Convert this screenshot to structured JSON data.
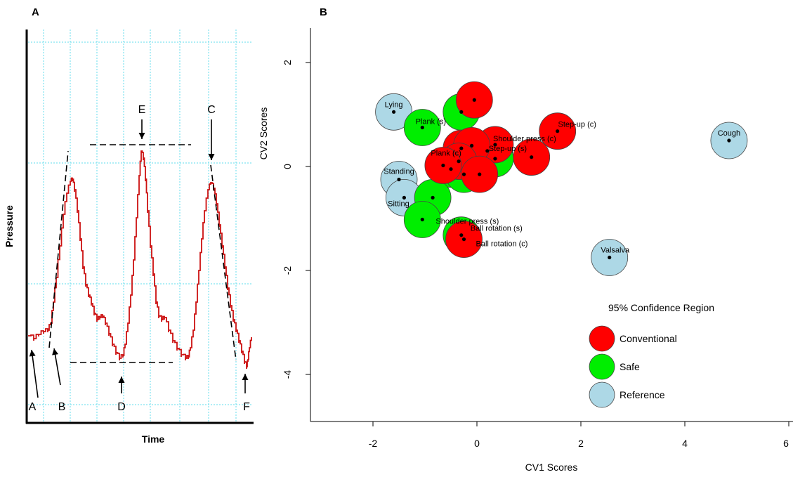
{
  "chart_data": [
    {
      "panel": "A",
      "type": "line",
      "xlabel": "Time",
      "ylabel": "Pressure",
      "grid": true,
      "series_color": "#cc1111",
      "grid_color": "#7fe3f0",
      "annotations": [
        "A",
        "B",
        "C",
        "D",
        "E",
        "F"
      ]
    },
    {
      "panel": "B",
      "type": "scatter",
      "xlabel": "CV1 Scores",
      "ylabel": "CV2 Scores",
      "xlim": [
        -3.4,
        6
      ],
      "ylim": [
        -5,
        2.7
      ],
      "xticks": [
        -2,
        0,
        2,
        4,
        6
      ],
      "yticks": [
        2,
        0,
        -2,
        -4
      ],
      "legend": {
        "title": "95% Confidence Region",
        "position": "bottom-right",
        "items": [
          {
            "label": "Conventional",
            "color": "#ff0000"
          },
          {
            "label": "Safe",
            "color": "#00ee00"
          },
          {
            "label": "Reference",
            "color": "#add8e6"
          }
        ]
      },
      "series": [
        {
          "name": "Reference",
          "color": "#add8e6",
          "points": [
            {
              "x": -1.6,
              "y": 1.05,
              "label": "Lying"
            },
            {
              "x": -1.5,
              "y": -0.25,
              "label": "Standing"
            },
            {
              "x": -1.4,
              "y": -0.6,
              "label": "Sitting"
            },
            {
              "x": 4.85,
              "y": 0.5,
              "label": "Cough"
            },
            {
              "x": 2.55,
              "y": -1.75,
              "label": "Valsalva"
            }
          ]
        },
        {
          "name": "Safe",
          "color": "#00ee00",
          "points": [
            {
              "x": -1.05,
              "y": 0.75,
              "label": "Plank (s)"
            },
            {
              "x": -0.3,
              "y": 1.05,
              "label": ""
            },
            {
              "x": 0.2,
              "y": 0.3,
              "label": ""
            },
            {
              "x": 0.35,
              "y": 0.15,
              "label": "Step-up (s)"
            },
            {
              "x": -0.5,
              "y": -0.05,
              "label": ""
            },
            {
              "x": -0.25,
              "y": -0.15,
              "label": ""
            },
            {
              "x": -0.85,
              "y": -0.6,
              "label": ""
            },
            {
              "x": -1.05,
              "y": -1.02,
              "label": "Shoulder press (s)"
            },
            {
              "x": -0.3,
              "y": -1.32,
              "label": "Ball rotation (s)"
            }
          ]
        },
        {
          "name": "Conventional",
          "color": "#ff0000",
          "points": [
            {
              "x": -0.05,
              "y": 1.28,
              "label": ""
            },
            {
              "x": 1.55,
              "y": 0.68,
              "label": "Step-up (c)"
            },
            {
              "x": 0.35,
              "y": 0.42,
              "label": "Shoulder press (c)"
            },
            {
              "x": 1.05,
              "y": 0.18,
              "label": ""
            },
            {
              "x": -0.3,
              "y": 0.35,
              "label": ""
            },
            {
              "x": -0.1,
              "y": 0.4,
              "label": ""
            },
            {
              "x": -0.35,
              "y": 0.1,
              "label": "Plank (c)"
            },
            {
              "x": -0.65,
              "y": 0.02,
              "label": ""
            },
            {
              "x": 0.05,
              "y": -0.15,
              "label": ""
            },
            {
              "x": -0.25,
              "y": -1.4,
              "label": "Ball rotation (c)"
            }
          ]
        }
      ]
    }
  ]
}
